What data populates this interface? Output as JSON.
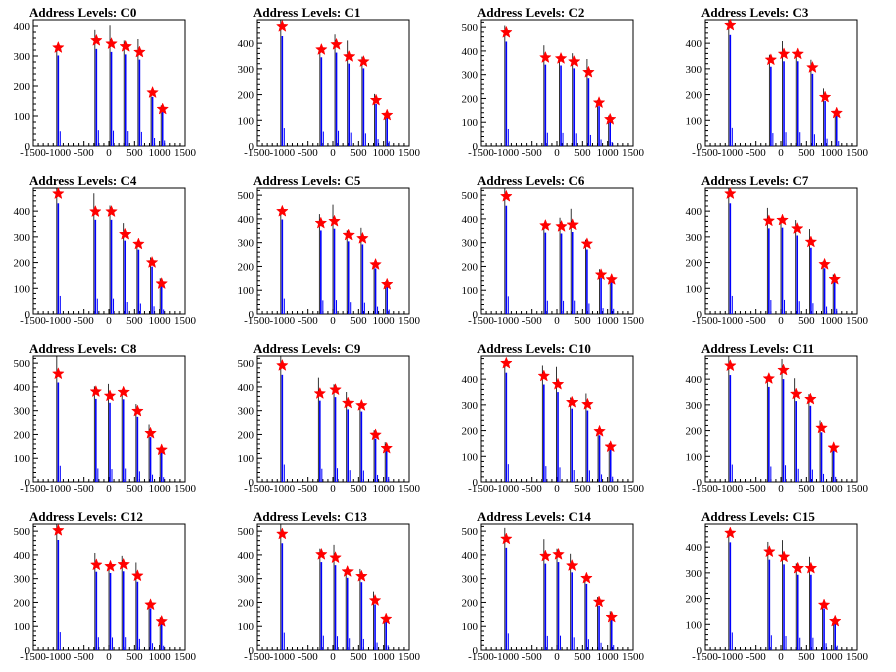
{
  "figure": {
    "background": "#ffffff",
    "axis_color": "#000000",
    "bar_color": "#0000ff",
    "spike_color": "#000000",
    "marker_color": "#ff0000"
  },
  "chart_data": [
    {
      "type": "bar",
      "title": "Address Levels: C0",
      "xlim": [
        -1500,
        1500
      ],
      "ylim": [
        0,
        420
      ],
      "yticks": [
        0,
        100,
        200,
        300,
        400
      ],
      "xticks": [
        -1500,
        -1000,
        -500,
        0,
        500,
        1000,
        1500
      ],
      "peaks": [
        {
          "x": -1000,
          "y": 328
        },
        {
          "x": -250,
          "y": 352
        },
        {
          "x": 50,
          "y": 341
        },
        {
          "x": 330,
          "y": 332
        },
        {
          "x": 600,
          "y": 313
        },
        {
          "x": 860,
          "y": 178
        },
        {
          "x": 1060,
          "y": 123
        }
      ]
    },
    {
      "type": "bar",
      "title": "Address Levels: C1",
      "xlim": [
        -1500,
        1500
      ],
      "ylim": [
        0,
        490
      ],
      "yticks": [
        0,
        100,
        200,
        300,
        400
      ],
      "xticks": [
        -1500,
        -1000,
        -500,
        0,
        500,
        1000,
        1500
      ],
      "peaks": [
        {
          "x": -1000,
          "y": 465
        },
        {
          "x": -230,
          "y": 375
        },
        {
          "x": 70,
          "y": 395
        },
        {
          "x": 320,
          "y": 348
        },
        {
          "x": 600,
          "y": 328
        },
        {
          "x": 850,
          "y": 178
        },
        {
          "x": 1070,
          "y": 120
        }
      ]
    },
    {
      "type": "bar",
      "title": "Address Levels: C2",
      "xlim": [
        -1500,
        1500
      ],
      "ylim": [
        0,
        530
      ],
      "yticks": [
        0,
        100,
        200,
        300,
        400,
        500
      ],
      "xticks": [
        -1500,
        -1000,
        -500,
        0,
        500,
        1000,
        1500
      ],
      "peaks": [
        {
          "x": -1000,
          "y": 478
        },
        {
          "x": -230,
          "y": 372
        },
        {
          "x": 80,
          "y": 368
        },
        {
          "x": 340,
          "y": 355
        },
        {
          "x": 620,
          "y": 310
        },
        {
          "x": 830,
          "y": 182
        },
        {
          "x": 1050,
          "y": 112
        }
      ]
    },
    {
      "type": "bar",
      "title": "Address Levels: C3",
      "xlim": [
        -1500,
        1500
      ],
      "ylim": [
        0,
        490
      ],
      "yticks": [
        0,
        100,
        200,
        300,
        400
      ],
      "xticks": [
        -1500,
        -1000,
        -500,
        0,
        500,
        1000,
        1500
      ],
      "peaks": [
        {
          "x": -1000,
          "y": 470
        },
        {
          "x": -200,
          "y": 335
        },
        {
          "x": 60,
          "y": 358
        },
        {
          "x": 330,
          "y": 358
        },
        {
          "x": 620,
          "y": 305
        },
        {
          "x": 870,
          "y": 190
        },
        {
          "x": 1100,
          "y": 128
        }
      ]
    },
    {
      "type": "bar",
      "title": "Address Levels: C4",
      "xlim": [
        -1500,
        1500
      ],
      "ylim": [
        0,
        490
      ],
      "yticks": [
        0,
        100,
        200,
        300,
        400
      ],
      "xticks": [
        -1500,
        -1000,
        -500,
        0,
        500,
        1000,
        1500
      ],
      "peaks": [
        {
          "x": -1000,
          "y": 468
        },
        {
          "x": -270,
          "y": 398
        },
        {
          "x": 50,
          "y": 398
        },
        {
          "x": 320,
          "y": 310
        },
        {
          "x": 580,
          "y": 272
        },
        {
          "x": 850,
          "y": 200
        },
        {
          "x": 1040,
          "y": 118
        }
      ]
    },
    {
      "type": "bar",
      "title": "Address Levels: C5",
      "xlim": [
        -1500,
        1500
      ],
      "ylim": [
        0,
        530
      ],
      "yticks": [
        0,
        100,
        200,
        300,
        400,
        500
      ],
      "xticks": [
        -1500,
        -1000,
        -500,
        0,
        500,
        1000,
        1500
      ],
      "peaks": [
        {
          "x": -1000,
          "y": 432
        },
        {
          "x": -240,
          "y": 382
        },
        {
          "x": 30,
          "y": 390
        },
        {
          "x": 310,
          "y": 332
        },
        {
          "x": 580,
          "y": 318
        },
        {
          "x": 840,
          "y": 208
        },
        {
          "x": 1070,
          "y": 125
        }
      ]
    },
    {
      "type": "bar",
      "title": "Address Levels: C6",
      "xlim": [
        -1500,
        1500
      ],
      "ylim": [
        0,
        530
      ],
      "yticks": [
        0,
        100,
        200,
        300,
        400,
        500
      ],
      "xticks": [
        -1500,
        -1000,
        -500,
        0,
        500,
        1000,
        1500
      ],
      "peaks": [
        {
          "x": -1000,
          "y": 495
        },
        {
          "x": -230,
          "y": 372
        },
        {
          "x": 90,
          "y": 368
        },
        {
          "x": 310,
          "y": 375
        },
        {
          "x": 590,
          "y": 295
        },
        {
          "x": 870,
          "y": 165
        },
        {
          "x": 1080,
          "y": 145
        }
      ]
    },
    {
      "type": "bar",
      "title": "Address Levels: C7",
      "xlim": [
        -1500,
        1500
      ],
      "ylim": [
        0,
        490
      ],
      "yticks": [
        0,
        100,
        200,
        300,
        400
      ],
      "xticks": [
        -1500,
        -1000,
        -500,
        0,
        500,
        1000,
        1500
      ],
      "peaks": [
        {
          "x": -1000,
          "y": 468
        },
        {
          "x": -240,
          "y": 362
        },
        {
          "x": 30,
          "y": 365
        },
        {
          "x": 320,
          "y": 332
        },
        {
          "x": 590,
          "y": 280
        },
        {
          "x": 860,
          "y": 193
        },
        {
          "x": 1060,
          "y": 135
        }
      ]
    },
    {
      "type": "bar",
      "title": "Address Levels: C8",
      "xlim": [
        -1500,
        1500
      ],
      "ylim": [
        0,
        530
      ],
      "yticks": [
        0,
        100,
        200,
        300,
        400,
        500
      ],
      "xticks": [
        -1500,
        -1000,
        -500,
        0,
        500,
        1000,
        1500
      ],
      "peaks": [
        {
          "x": -1000,
          "y": 455
        },
        {
          "x": -260,
          "y": 380
        },
        {
          "x": 20,
          "y": 362
        },
        {
          "x": 290,
          "y": 378
        },
        {
          "x": 560,
          "y": 298
        },
        {
          "x": 820,
          "y": 205
        },
        {
          "x": 1040,
          "y": 135
        }
      ]
    },
    {
      "type": "bar",
      "title": "Address Levels: C9",
      "xlim": [
        -1500,
        1500
      ],
      "ylim": [
        0,
        530
      ],
      "yticks": [
        0,
        100,
        200,
        300,
        400,
        500
      ],
      "xticks": [
        -1500,
        -1000,
        -500,
        0,
        500,
        1000,
        1500
      ],
      "peaks": [
        {
          "x": -1000,
          "y": 490
        },
        {
          "x": -260,
          "y": 372
        },
        {
          "x": 50,
          "y": 388
        },
        {
          "x": 300,
          "y": 332
        },
        {
          "x": 560,
          "y": 322
        },
        {
          "x": 840,
          "y": 198
        },
        {
          "x": 1060,
          "y": 142
        }
      ]
    },
    {
      "type": "bar",
      "title": "Address Levels: C10",
      "xlim": [
        -1500,
        1500
      ],
      "ylim": [
        0,
        490
      ],
      "yticks": [
        0,
        100,
        200,
        300,
        400
      ],
      "xticks": [
        -1500,
        -1000,
        -500,
        0,
        500,
        1000,
        1500
      ],
      "peaks": [
        {
          "x": -1000,
          "y": 462
        },
        {
          "x": -260,
          "y": 412
        },
        {
          "x": 20,
          "y": 380
        },
        {
          "x": 300,
          "y": 310
        },
        {
          "x": 600,
          "y": 302
        },
        {
          "x": 840,
          "y": 197
        },
        {
          "x": 1060,
          "y": 137
        }
      ]
    },
    {
      "type": "bar",
      "title": "Address Levels: C11",
      "xlim": [
        -1500,
        1500
      ],
      "ylim": [
        0,
        490
      ],
      "yticks": [
        0,
        100,
        200,
        300,
        400
      ],
      "xticks": [
        -1500,
        -1000,
        -500,
        0,
        500,
        1000,
        1500
      ],
      "peaks": [
        {
          "x": -1000,
          "y": 452
        },
        {
          "x": -240,
          "y": 402
        },
        {
          "x": 50,
          "y": 435
        },
        {
          "x": 300,
          "y": 342
        },
        {
          "x": 580,
          "y": 322
        },
        {
          "x": 800,
          "y": 210
        },
        {
          "x": 1040,
          "y": 133
        }
      ]
    },
    {
      "type": "bar",
      "title": "Address Levels: C12",
      "xlim": [
        -1500,
        1500
      ],
      "ylim": [
        0,
        530
      ],
      "yticks": [
        0,
        100,
        200,
        300,
        400,
        500
      ],
      "xticks": [
        -1500,
        -1000,
        -500,
        0,
        500,
        1000,
        1500
      ],
      "peaks": [
        {
          "x": -1000,
          "y": 503
        },
        {
          "x": -250,
          "y": 358
        },
        {
          "x": 30,
          "y": 352
        },
        {
          "x": 290,
          "y": 360
        },
        {
          "x": 560,
          "y": 312
        },
        {
          "x": 820,
          "y": 190
        },
        {
          "x": 1040,
          "y": 120
        }
      ]
    },
    {
      "type": "bar",
      "title": "Address Levels: C13",
      "xlim": [
        -1500,
        1500
      ],
      "ylim": [
        0,
        530
      ],
      "yticks": [
        0,
        100,
        200,
        300,
        400,
        500
      ],
      "xticks": [
        -1500,
        -1000,
        -500,
        0,
        500,
        1000,
        1500
      ],
      "peaks": [
        {
          "x": -1000,
          "y": 488
        },
        {
          "x": -230,
          "y": 402
        },
        {
          "x": 50,
          "y": 388
        },
        {
          "x": 290,
          "y": 330
        },
        {
          "x": 560,
          "y": 310
        },
        {
          "x": 830,
          "y": 208
        },
        {
          "x": 1050,
          "y": 130
        }
      ]
    },
    {
      "type": "bar",
      "title": "Address Levels: C14",
      "xlim": [
        -1500,
        1500
      ],
      "ylim": [
        0,
        530
      ],
      "yticks": [
        0,
        100,
        200,
        300,
        400,
        500
      ],
      "xticks": [
        -1500,
        -1000,
        -500,
        0,
        500,
        1000,
        1500
      ],
      "peaks": [
        {
          "x": -1000,
          "y": 467
        },
        {
          "x": -230,
          "y": 395
        },
        {
          "x": 30,
          "y": 402
        },
        {
          "x": 300,
          "y": 355
        },
        {
          "x": 580,
          "y": 302
        },
        {
          "x": 830,
          "y": 202
        },
        {
          "x": 1080,
          "y": 138
        }
      ]
    },
    {
      "type": "bar",
      "title": "Address Levels: C15",
      "xlim": [
        -1500,
        1500
      ],
      "ylim": [
        0,
        490
      ],
      "yticks": [
        0,
        100,
        200,
        300,
        400
      ],
      "xticks": [
        -1500,
        -1000,
        -500,
        0,
        500,
        1000,
        1500
      ],
      "peaks": [
        {
          "x": -1000,
          "y": 455
        },
        {
          "x": -230,
          "y": 382
        },
        {
          "x": 60,
          "y": 362
        },
        {
          "x": 330,
          "y": 318
        },
        {
          "x": 590,
          "y": 318
        },
        {
          "x": 850,
          "y": 175
        },
        {
          "x": 1070,
          "y": 112
        }
      ]
    }
  ]
}
